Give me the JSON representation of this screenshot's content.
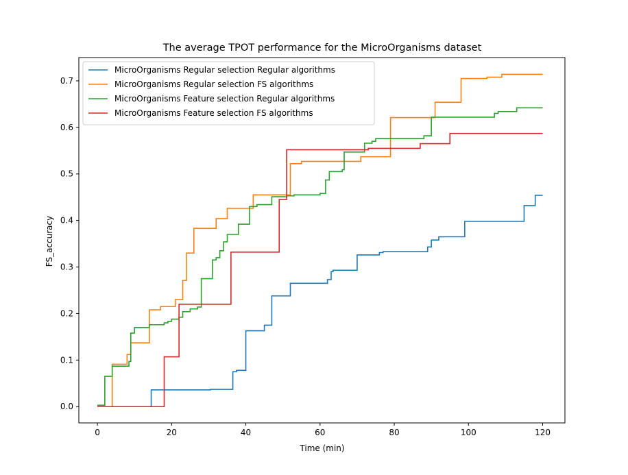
{
  "chart_data": {
    "type": "line",
    "step": "post",
    "title": "The average TPOT performance for the MicroOrganisms dataset",
    "xlabel": "Time (min)",
    "ylabel": "FS_accuracy",
    "xlim": [
      -5,
      126
    ],
    "ylim": [
      -0.035,
      0.75
    ],
    "xticks": [
      0,
      20,
      40,
      60,
      80,
      100,
      120
    ],
    "yticks": [
      0.0,
      0.1,
      0.2,
      0.3,
      0.4,
      0.5,
      0.6,
      0.7
    ],
    "xtick_labels": [
      "0",
      "20",
      "40",
      "60",
      "80",
      "100",
      "120"
    ],
    "ytick_labels": [
      "0.0",
      "0.1",
      "0.2",
      "0.3",
      "0.4",
      "0.5",
      "0.6",
      "0.7"
    ],
    "legend_position": "upper-left",
    "series": [
      {
        "name": "MicroOrganisms Regular selection Regular algorithms",
        "color": "#1f77b4",
        "points": [
          [
            0,
            0.0
          ],
          [
            14.5,
            0.0
          ],
          [
            14.5,
            0.036
          ],
          [
            30.5,
            0.036
          ],
          [
            30.5,
            0.037
          ],
          [
            36.5,
            0.037
          ],
          [
            36.5,
            0.075
          ],
          [
            37.5,
            0.075
          ],
          [
            37.5,
            0.078
          ],
          [
            40,
            0.078
          ],
          [
            40,
            0.163
          ],
          [
            45,
            0.163
          ],
          [
            45,
            0.175
          ],
          [
            47,
            0.175
          ],
          [
            47,
            0.238
          ],
          [
            52,
            0.238
          ],
          [
            52,
            0.265
          ],
          [
            62,
            0.265
          ],
          [
            62,
            0.273
          ],
          [
            63,
            0.273
          ],
          [
            63,
            0.29
          ],
          [
            63.5,
            0.29
          ],
          [
            63.5,
            0.293
          ],
          [
            70,
            0.293
          ],
          [
            70,
            0.326
          ],
          [
            76,
            0.326
          ],
          [
            76,
            0.331
          ],
          [
            77,
            0.331
          ],
          [
            77,
            0.333
          ],
          [
            89,
            0.333
          ],
          [
            89,
            0.343
          ],
          [
            90,
            0.343
          ],
          [
            90,
            0.358
          ],
          [
            92,
            0.358
          ],
          [
            92,
            0.365
          ],
          [
            99,
            0.365
          ],
          [
            99,
            0.398
          ],
          [
            115,
            0.398
          ],
          [
            115,
            0.432
          ],
          [
            118,
            0.432
          ],
          [
            118,
            0.454
          ],
          [
            120,
            0.454
          ]
        ]
      },
      {
        "name": "MicroOrganisms Regular selection FS algorithms",
        "color": "#ff7f0e",
        "points": [
          [
            0,
            0.0
          ],
          [
            4,
            0.0
          ],
          [
            4,
            0.091
          ],
          [
            8,
            0.091
          ],
          [
            8,
            0.112
          ],
          [
            9,
            0.112
          ],
          [
            9,
            0.137
          ],
          [
            14,
            0.137
          ],
          [
            14,
            0.208
          ],
          [
            17,
            0.208
          ],
          [
            17,
            0.215
          ],
          [
            21,
            0.215
          ],
          [
            21,
            0.23
          ],
          [
            23,
            0.23
          ],
          [
            23,
            0.271
          ],
          [
            24,
            0.271
          ],
          [
            24,
            0.33
          ],
          [
            26,
            0.33
          ],
          [
            26,
            0.383
          ],
          [
            32,
            0.383
          ],
          [
            32,
            0.404
          ],
          [
            35,
            0.404
          ],
          [
            35,
            0.426
          ],
          [
            42,
            0.426
          ],
          [
            42,
            0.455
          ],
          [
            52,
            0.455
          ],
          [
            52,
            0.522
          ],
          [
            55,
            0.522
          ],
          [
            55,
            0.527
          ],
          [
            71,
            0.527
          ],
          [
            71,
            0.537
          ],
          [
            79,
            0.537
          ],
          [
            79,
            0.621
          ],
          [
            91,
            0.621
          ],
          [
            91,
            0.654
          ],
          [
            98,
            0.654
          ],
          [
            98,
            0.705
          ],
          [
            105,
            0.705
          ],
          [
            105,
            0.708
          ],
          [
            109,
            0.708
          ],
          [
            109,
            0.714
          ],
          [
            120,
            0.714
          ]
        ]
      },
      {
        "name": "MicroOrganisms Feature selection Regular algorithms",
        "color": "#2ca02c",
        "points": [
          [
            0,
            0.003
          ],
          [
            2,
            0.003
          ],
          [
            2,
            0.065
          ],
          [
            4,
            0.065
          ],
          [
            4,
            0.087
          ],
          [
            8.5,
            0.087
          ],
          [
            8.5,
            0.097
          ],
          [
            9,
            0.097
          ],
          [
            9,
            0.158
          ],
          [
            10,
            0.158
          ],
          [
            10,
            0.17
          ],
          [
            14,
            0.17
          ],
          [
            14,
            0.176
          ],
          [
            18,
            0.176
          ],
          [
            18,
            0.18
          ],
          [
            19,
            0.18
          ],
          [
            19,
            0.183
          ],
          [
            20,
            0.183
          ],
          [
            20,
            0.188
          ],
          [
            22,
            0.188
          ],
          [
            22,
            0.192
          ],
          [
            23,
            0.192
          ],
          [
            23,
            0.204
          ],
          [
            25,
            0.204
          ],
          [
            25,
            0.21
          ],
          [
            27,
            0.21
          ],
          [
            27,
            0.214
          ],
          [
            28,
            0.214
          ],
          [
            28,
            0.275
          ],
          [
            31,
            0.275
          ],
          [
            31,
            0.315
          ],
          [
            32,
            0.315
          ],
          [
            32,
            0.32
          ],
          [
            33,
            0.32
          ],
          [
            33,
            0.335
          ],
          [
            34,
            0.335
          ],
          [
            34,
            0.354
          ],
          [
            35,
            0.354
          ],
          [
            35,
            0.37
          ],
          [
            38,
            0.37
          ],
          [
            38,
            0.392
          ],
          [
            41,
            0.392
          ],
          [
            41,
            0.43
          ],
          [
            43,
            0.43
          ],
          [
            43,
            0.434
          ],
          [
            47,
            0.434
          ],
          [
            47,
            0.451
          ],
          [
            51,
            0.451
          ],
          [
            51,
            0.453
          ],
          [
            53,
            0.453
          ],
          [
            53,
            0.455
          ],
          [
            60,
            0.455
          ],
          [
            60,
            0.458
          ],
          [
            61.5,
            0.458
          ],
          [
            61.5,
            0.487
          ],
          [
            62.5,
            0.487
          ],
          [
            62.5,
            0.505
          ],
          [
            66,
            0.505
          ],
          [
            66,
            0.509
          ],
          [
            66.5,
            0.509
          ],
          [
            66.5,
            0.547
          ],
          [
            72,
            0.547
          ],
          [
            72,
            0.566
          ],
          [
            74,
            0.566
          ],
          [
            74,
            0.57
          ],
          [
            75,
            0.57
          ],
          [
            75,
            0.576
          ],
          [
            88,
            0.576
          ],
          [
            88,
            0.582
          ],
          [
            90,
            0.582
          ],
          [
            90,
            0.622
          ],
          [
            107,
            0.622
          ],
          [
            107,
            0.63
          ],
          [
            108,
            0.63
          ],
          [
            108,
            0.634
          ],
          [
            113,
            0.634
          ],
          [
            113,
            0.642
          ],
          [
            120,
            0.642
          ]
        ]
      },
      {
        "name": "MicroOrganisms Feature selection FS algorithms",
        "color": "#d62728",
        "points": [
          [
            0,
            0.0
          ],
          [
            18,
            0.0
          ],
          [
            18,
            0.107
          ],
          [
            22,
            0.107
          ],
          [
            22,
            0.22
          ],
          [
            36,
            0.22
          ],
          [
            36,
            0.332
          ],
          [
            49,
            0.332
          ],
          [
            49,
            0.445
          ],
          [
            51,
            0.445
          ],
          [
            51,
            0.552
          ],
          [
            73,
            0.552
          ],
          [
            73,
            0.555
          ],
          [
            87,
            0.555
          ],
          [
            87,
            0.565
          ],
          [
            95,
            0.565
          ],
          [
            95,
            0.587
          ],
          [
            120,
            0.587
          ]
        ]
      }
    ]
  }
}
